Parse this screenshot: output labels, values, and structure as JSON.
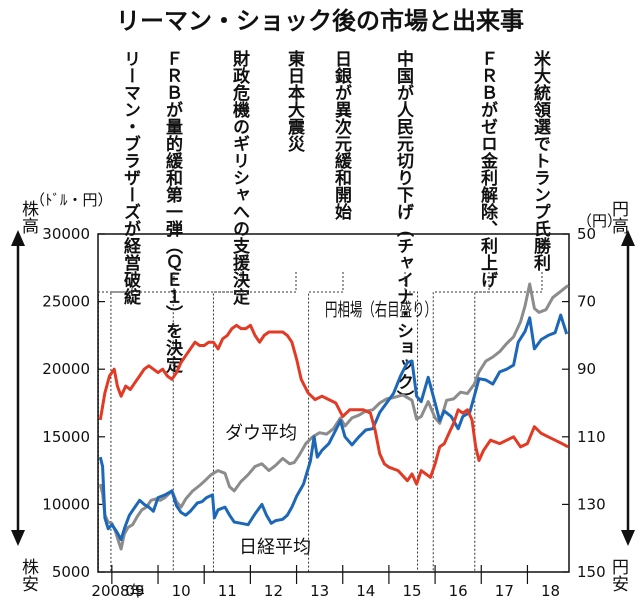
{
  "chart_data": {
    "type": "line",
    "title": "リーマン・ショック後の市場と出来事",
    "left_axis": {
      "label_top": "株高",
      "unit": "（ﾄﾞﾙ・円）",
      "label_bottom": "株安",
      "range": [
        5000,
        30000
      ],
      "ticks": [
        "30000",
        "25000",
        "20000",
        "15000",
        "10000",
        "5000"
      ]
    },
    "right_axis": {
      "label_top": "円高",
      "unit": "（円）",
      "label_bottom": "円安",
      "range": [
        50,
        150
      ],
      "inverted": true,
      "ticks": [
        "50",
        "70",
        "90",
        "110",
        "130",
        "150"
      ]
    },
    "x_axis": {
      "range": [
        2008.7,
        2018.9
      ],
      "tick_labels": [
        "2008年",
        "09",
        "10",
        "11",
        "12",
        "13",
        "14",
        "15",
        "16",
        "17",
        "18"
      ],
      "tick_years": [
        2008.45,
        2009.5,
        2010.5,
        2011.5,
        2012.5,
        2013.5,
        2014.5,
        2015.5,
        2016.5,
        2017.5,
        2018.5
      ]
    },
    "series": [
      {
        "name": "円相場（右目盛り）",
        "axis": "right",
        "color": "#e23a24",
        "points": [
          [
            2008.75,
            105
          ],
          [
            2008.85,
            97
          ],
          [
            2008.95,
            92
          ],
          [
            2009.05,
            90
          ],
          [
            2009.12,
            95
          ],
          [
            2009.2,
            98
          ],
          [
            2009.3,
            95
          ],
          [
            2009.4,
            96
          ],
          [
            2009.5,
            94
          ],
          [
            2009.6,
            92
          ],
          [
            2009.7,
            90
          ],
          [
            2009.8,
            89
          ],
          [
            2009.9,
            90
          ],
          [
            2010.0,
            91
          ],
          [
            2010.1,
            90
          ],
          [
            2010.2,
            92
          ],
          [
            2010.3,
            93
          ],
          [
            2010.4,
            91
          ],
          [
            2010.5,
            88
          ],
          [
            2010.6,
            86
          ],
          [
            2010.7,
            84
          ],
          [
            2010.8,
            82
          ],
          [
            2010.9,
            83
          ],
          [
            2011.0,
            83
          ],
          [
            2011.1,
            82
          ],
          [
            2011.2,
            82
          ],
          [
            2011.3,
            84
          ],
          [
            2011.4,
            81
          ],
          [
            2011.5,
            80
          ],
          [
            2011.6,
            78
          ],
          [
            2011.7,
            77
          ],
          [
            2011.8,
            78
          ],
          [
            2011.9,
            78
          ],
          [
            2012.0,
            77
          ],
          [
            2012.1,
            80
          ],
          [
            2012.2,
            82
          ],
          [
            2012.3,
            80
          ],
          [
            2012.4,
            79
          ],
          [
            2012.5,
            79
          ],
          [
            2012.6,
            79
          ],
          [
            2012.7,
            79
          ],
          [
            2012.8,
            80
          ],
          [
            2012.9,
            82
          ],
          [
            2013.0,
            87
          ],
          [
            2013.1,
            93
          ],
          [
            2013.25,
            97
          ],
          [
            2013.4,
            99
          ],
          [
            2013.55,
            98
          ],
          [
            2013.7,
            99
          ],
          [
            2013.85,
            100
          ],
          [
            2014.0,
            104
          ],
          [
            2014.15,
            102
          ],
          [
            2014.3,
            102
          ],
          [
            2014.45,
            102
          ],
          [
            2014.6,
            103
          ],
          [
            2014.7,
            108
          ],
          [
            2014.8,
            115
          ],
          [
            2014.9,
            118
          ],
          [
            2015.0,
            119
          ],
          [
            2015.2,
            120
          ],
          [
            2015.4,
            123
          ],
          [
            2015.5,
            121
          ],
          [
            2015.6,
            124
          ],
          [
            2015.7,
            120
          ],
          [
            2015.8,
            121
          ],
          [
            2015.9,
            122
          ],
          [
            2016.0,
            118
          ],
          [
            2016.1,
            113
          ],
          [
            2016.2,
            112
          ],
          [
            2016.3,
            109
          ],
          [
            2016.4,
            106
          ],
          [
            2016.5,
            102
          ],
          [
            2016.6,
            103
          ],
          [
            2016.7,
            102
          ],
          [
            2016.8,
            105
          ],
          [
            2016.88,
            113
          ],
          [
            2016.95,
            117
          ],
          [
            2017.05,
            114
          ],
          [
            2017.2,
            111
          ],
          [
            2017.4,
            112
          ],
          [
            2017.55,
            111
          ],
          [
            2017.7,
            110
          ],
          [
            2017.85,
            113
          ],
          [
            2018.0,
            112
          ],
          [
            2018.15,
            107
          ],
          [
            2018.3,
            109
          ],
          [
            2018.45,
            110
          ],
          [
            2018.6,
            111
          ],
          [
            2018.75,
            112
          ],
          [
            2018.88,
            113
          ]
        ]
      },
      {
        "name": "ダウ平均",
        "axis": "left",
        "color": "#8c8c8c",
        "points": [
          [
            2008.75,
            11500
          ],
          [
            2008.8,
            10800
          ],
          [
            2008.85,
            9200
          ],
          [
            2008.92,
            8700
          ],
          [
            2009.0,
            8600
          ],
          [
            2009.08,
            8000
          ],
          [
            2009.15,
            7200
          ],
          [
            2009.2,
            6700
          ],
          [
            2009.27,
            7800
          ],
          [
            2009.35,
            8300
          ],
          [
            2009.45,
            8500
          ],
          [
            2009.55,
            9100
          ],
          [
            2009.65,
            9600
          ],
          [
            2009.75,
            9800
          ],
          [
            2009.85,
            10300
          ],
          [
            2009.95,
            10400
          ],
          [
            2010.05,
            10300
          ],
          [
            2010.15,
            10500
          ],
          [
            2010.3,
            11000
          ],
          [
            2010.4,
            10200
          ],
          [
            2010.5,
            9800
          ],
          [
            2010.6,
            10400
          ],
          [
            2010.75,
            11000
          ],
          [
            2010.9,
            11400
          ],
          [
            2011.0,
            11700
          ],
          [
            2011.15,
            12200
          ],
          [
            2011.3,
            12500
          ],
          [
            2011.45,
            12300
          ],
          [
            2011.55,
            11300
          ],
          [
            2011.65,
            11000
          ],
          [
            2011.8,
            11700
          ],
          [
            2011.95,
            12200
          ],
          [
            2012.1,
            12800
          ],
          [
            2012.25,
            13000
          ],
          [
            2012.4,
            12500
          ],
          [
            2012.55,
            12900
          ],
          [
            2012.7,
            13400
          ],
          [
            2012.85,
            13000
          ],
          [
            2012.95,
            13100
          ],
          [
            2013.05,
            13600
          ],
          [
            2013.2,
            14500
          ],
          [
            2013.35,
            15000
          ],
          [
            2013.5,
            15300
          ],
          [
            2013.65,
            15200
          ],
          [
            2013.8,
            15600
          ],
          [
            2013.95,
            16400
          ],
          [
            2014.05,
            15800
          ],
          [
            2014.2,
            16400
          ],
          [
            2014.35,
            16600
          ],
          [
            2014.5,
            16900
          ],
          [
            2014.65,
            17000
          ],
          [
            2014.8,
            17500
          ],
          [
            2014.95,
            17800
          ],
          [
            2015.1,
            17900
          ],
          [
            2015.3,
            18100
          ],
          [
            2015.5,
            17700
          ],
          [
            2015.6,
            16300
          ],
          [
            2015.7,
            16500
          ],
          [
            2015.85,
            17600
          ],
          [
            2016.0,
            16400
          ],
          [
            2016.1,
            16000
          ],
          [
            2016.25,
            17700
          ],
          [
            2016.4,
            17800
          ],
          [
            2016.55,
            18300
          ],
          [
            2016.7,
            18200
          ],
          [
            2016.85,
            18900
          ],
          [
            2016.95,
            19800
          ],
          [
            2017.1,
            20600
          ],
          [
            2017.25,
            20900
          ],
          [
            2017.4,
            21300
          ],
          [
            2017.55,
            21900
          ],
          [
            2017.7,
            22400
          ],
          [
            2017.85,
            23500
          ],
          [
            2017.95,
            24700
          ],
          [
            2018.05,
            26300
          ],
          [
            2018.15,
            24500
          ],
          [
            2018.25,
            24200
          ],
          [
            2018.4,
            24400
          ],
          [
            2018.55,
            25300
          ],
          [
            2018.7,
            25700
          ],
          [
            2018.88,
            26200
          ]
        ]
      },
      {
        "name": "日経平均",
        "axis": "left",
        "color": "#1d67b8",
        "points": [
          [
            2008.75,
            13500
          ],
          [
            2008.8,
            12800
          ],
          [
            2008.85,
            9000
          ],
          [
            2008.92,
            8200
          ],
          [
            2009.0,
            8500
          ],
          [
            2009.1,
            8000
          ],
          [
            2009.2,
            7400
          ],
          [
            2009.28,
            8300
          ],
          [
            2009.38,
            9200
          ],
          [
            2009.5,
            9800
          ],
          [
            2009.6,
            10300
          ],
          [
            2009.7,
            10000
          ],
          [
            2009.8,
            9800
          ],
          [
            2009.9,
            9500
          ],
          [
            2010.0,
            10500
          ],
          [
            2010.15,
            10700
          ],
          [
            2010.3,
            11000
          ],
          [
            2010.4,
            9900
          ],
          [
            2010.5,
            9400
          ],
          [
            2010.6,
            9200
          ],
          [
            2010.7,
            9500
          ],
          [
            2010.85,
            10100
          ],
          [
            2010.95,
            10200
          ],
          [
            2011.05,
            10500
          ],
          [
            2011.18,
            10700
          ],
          [
            2011.22,
            9000
          ],
          [
            2011.3,
            9600
          ],
          [
            2011.45,
            9800
          ],
          [
            2011.55,
            9200
          ],
          [
            2011.65,
            8700
          ],
          [
            2011.8,
            8600
          ],
          [
            2011.95,
            8500
          ],
          [
            2012.1,
            9300
          ],
          [
            2012.25,
            10000
          ],
          [
            2012.35,
            9200
          ],
          [
            2012.45,
            8600
          ],
          [
            2012.55,
            8800
          ],
          [
            2012.7,
            8900
          ],
          [
            2012.8,
            9200
          ],
          [
            2012.9,
            9800
          ],
          [
            2013.0,
            10600
          ],
          [
            2013.15,
            11500
          ],
          [
            2013.3,
            13200
          ],
          [
            2013.38,
            15000
          ],
          [
            2013.45,
            13500
          ],
          [
            2013.55,
            14000
          ],
          [
            2013.7,
            14500
          ],
          [
            2013.85,
            15500
          ],
          [
            2013.95,
            16200
          ],
          [
            2014.05,
            15000
          ],
          [
            2014.2,
            14400
          ],
          [
            2014.35,
            15000
          ],
          [
            2014.5,
            15500
          ],
          [
            2014.65,
            15600
          ],
          [
            2014.8,
            16800
          ],
          [
            2014.95,
            17500
          ],
          [
            2015.1,
            18200
          ],
          [
            2015.25,
            19500
          ],
          [
            2015.4,
            20500
          ],
          [
            2015.5,
            20600
          ],
          [
            2015.6,
            18000
          ],
          [
            2015.7,
            17600
          ],
          [
            2015.85,
            19400
          ],
          [
            2016.0,
            17500
          ],
          [
            2016.1,
            16200
          ],
          [
            2016.2,
            16900
          ],
          [
            2016.35,
            16500
          ],
          [
            2016.5,
            15600
          ],
          [
            2016.6,
            16500
          ],
          [
            2016.75,
            16800
          ],
          [
            2016.85,
            18000
          ],
          [
            2016.95,
            19300
          ],
          [
            2017.1,
            19200
          ],
          [
            2017.25,
            18900
          ],
          [
            2017.4,
            19800
          ],
          [
            2017.55,
            20000
          ],
          [
            2017.7,
            20300
          ],
          [
            2017.8,
            22000
          ],
          [
            2017.95,
            22800
          ],
          [
            2018.05,
            23800
          ],
          [
            2018.15,
            21500
          ],
          [
            2018.3,
            22200
          ],
          [
            2018.45,
            22500
          ],
          [
            2018.6,
            22700
          ],
          [
            2018.72,
            24000
          ],
          [
            2018.85,
            22600
          ]
        ]
      }
    ],
    "events": [
      {
        "text": "リーマン・ブラザーズが経営破綻",
        "year": 2008.71
      },
      {
        "text": "ＦＲＢが量的緩和第一弾（ＱＥ１）を決定",
        "year": 2008.98
      },
      {
        "text": "財政危機のギリシャへの支援決定",
        "year": 2010.33
      },
      {
        "text": "東日本大震災",
        "year": 2011.2
      },
      {
        "text": "日銀が異次元緩和開始",
        "year": 2013.26
      },
      {
        "text": "中国が人民元切り下げ（チャイナ・ショック）",
        "year": 2015.62
      },
      {
        "text": "ＦＲＢがゼロ金利解除、利上げ",
        "year": 2015.96
      },
      {
        "text": "米大統領選でトランプ氏勝利",
        "year": 2016.86
      }
    ]
  }
}
